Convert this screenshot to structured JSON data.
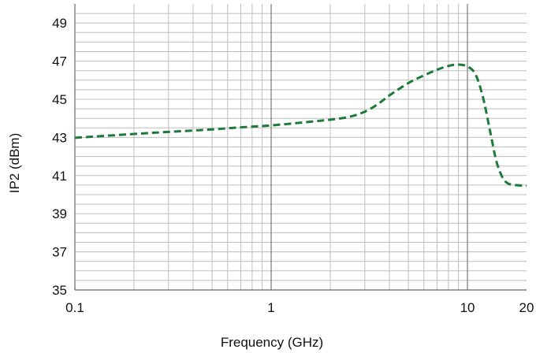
{
  "chart_data": {
    "type": "line",
    "title": "",
    "xlabel": "Frequency (GHz)",
    "ylabel": "IP2 (dBm)",
    "xscale": "log",
    "xlim": [
      0.1,
      20
    ],
    "ylim": [
      35,
      50
    ],
    "x_ticks": [
      {
        "value": 0.1,
        "label": "0.1"
      },
      {
        "value": 1,
        "label": "1"
      },
      {
        "value": 10,
        "label": "10"
      },
      {
        "value": 20,
        "label": "20"
      }
    ],
    "y_ticks": [
      {
        "value": 35,
        "label": "35"
      },
      {
        "value": 37,
        "label": "37"
      },
      {
        "value": 39,
        "label": "39"
      },
      {
        "value": 41,
        "label": "41"
      },
      {
        "value": 43,
        "label": "43"
      },
      {
        "value": 45,
        "label": "45"
      },
      {
        "value": 47,
        "label": "47"
      },
      {
        "value": 49,
        "label": "49"
      }
    ],
    "grid": true,
    "legend": "none",
    "series": [
      {
        "color": "#1e7a3a",
        "style": "dashed",
        "points": [
          [
            0.1,
            42.98
          ],
          [
            0.2,
            43.18
          ],
          [
            0.3,
            43.29
          ],
          [
            0.5,
            43.42
          ],
          [
            0.7,
            43.53
          ],
          [
            1.0,
            43.63
          ],
          [
            1.5,
            43.8
          ],
          [
            2.0,
            43.93
          ],
          [
            2.5,
            44.08
          ],
          [
            3.0,
            44.35
          ],
          [
            3.5,
            44.75
          ],
          [
            4.0,
            45.2
          ],
          [
            5.0,
            45.85
          ],
          [
            6.0,
            46.25
          ],
          [
            7.0,
            46.55
          ],
          [
            8.0,
            46.75
          ],
          [
            9.0,
            46.82
          ],
          [
            10.0,
            46.72
          ],
          [
            11.0,
            46.3
          ],
          [
            12.0,
            45.1
          ],
          [
            13.0,
            43.4
          ],
          [
            14.0,
            41.8
          ],
          [
            15.0,
            40.95
          ],
          [
            16.0,
            40.6
          ],
          [
            17.5,
            40.5
          ],
          [
            20.0,
            40.47
          ]
        ]
      }
    ]
  }
}
